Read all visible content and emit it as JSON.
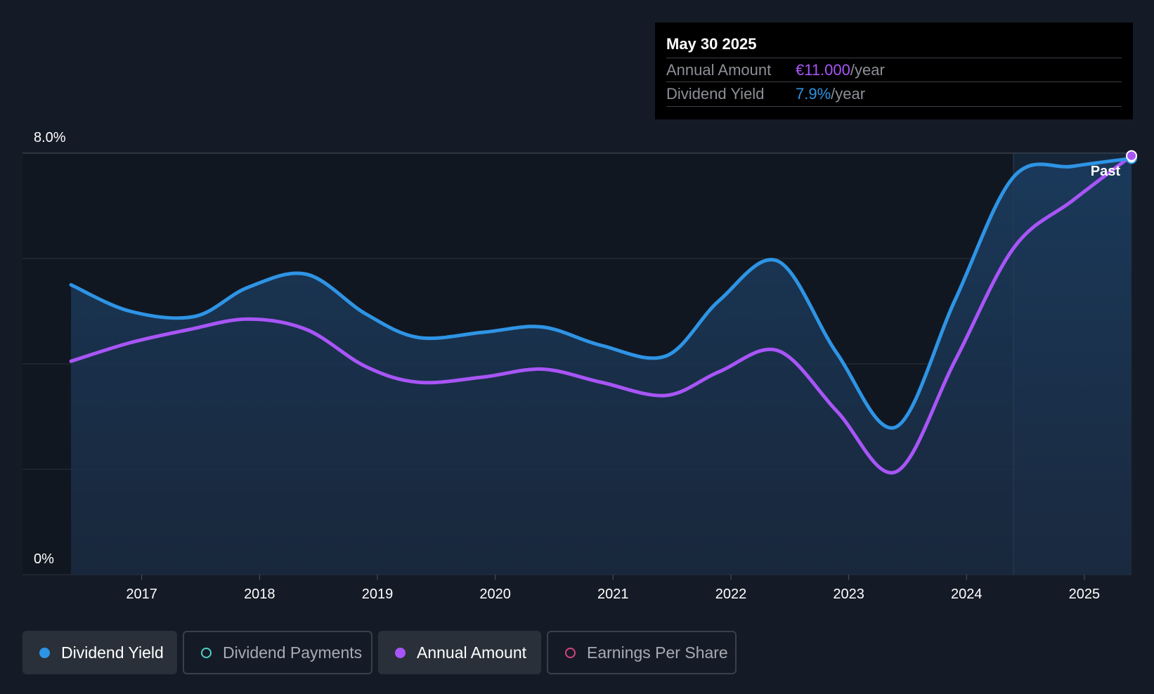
{
  "tooltip": {
    "date": "May 30 2025",
    "rows": [
      {
        "label": "Annual Amount",
        "value": "€11.000",
        "unit": "/year",
        "color": "#a855f7"
      },
      {
        "label": "Dividend Yield",
        "value": "7.9%",
        "unit": "/year",
        "color": "#2e94e5"
      }
    ]
  },
  "chart_data": {
    "type": "area",
    "x_tick_labels": [
      "2017",
      "2018",
      "2019",
      "2020",
      "2021",
      "2022",
      "2023",
      "2024",
      "2025"
    ],
    "y_tick_labels": [
      "8.0%",
      "0%"
    ],
    "ylim": [
      0,
      8
    ],
    "region_label": "Past",
    "grid": true,
    "series": [
      {
        "name": "Dividend Yield",
        "color": "#2e94e5",
        "filled": true,
        "points": [
          [
            2016.4,
            5.5
          ],
          [
            2016.9,
            5.0
          ],
          [
            2017.45,
            4.9
          ],
          [
            2017.9,
            5.45
          ],
          [
            2018.4,
            5.7
          ],
          [
            2018.9,
            4.95
          ],
          [
            2019.35,
            4.5
          ],
          [
            2019.9,
            4.6
          ],
          [
            2020.4,
            4.7
          ],
          [
            2020.9,
            4.35
          ],
          [
            2021.45,
            4.15
          ],
          [
            2021.9,
            5.2
          ],
          [
            2022.4,
            5.95
          ],
          [
            2022.9,
            4.2
          ],
          [
            2023.4,
            2.8
          ],
          [
            2023.9,
            5.2
          ],
          [
            2024.4,
            7.55
          ],
          [
            2024.9,
            7.75
          ],
          [
            2025.4,
            7.9
          ]
        ]
      },
      {
        "name": "Annual Amount",
        "color": "#a855f7",
        "filled": false,
        "points": [
          [
            2016.4,
            4.05
          ],
          [
            2016.9,
            4.4
          ],
          [
            2017.4,
            4.65
          ],
          [
            2017.9,
            4.85
          ],
          [
            2018.4,
            4.65
          ],
          [
            2018.9,
            3.95
          ],
          [
            2019.35,
            3.65
          ],
          [
            2019.9,
            3.75
          ],
          [
            2020.4,
            3.9
          ],
          [
            2020.9,
            3.65
          ],
          [
            2021.45,
            3.4
          ],
          [
            2021.9,
            3.85
          ],
          [
            2022.4,
            4.25
          ],
          [
            2022.9,
            3.1
          ],
          [
            2023.4,
            1.95
          ],
          [
            2023.9,
            4.05
          ],
          [
            2024.4,
            6.2
          ],
          [
            2024.9,
            7.1
          ],
          [
            2025.4,
            7.95
          ]
        ]
      }
    ]
  },
  "legend": [
    {
      "label": "Dividend Yield",
      "color": "#2e94e5",
      "active": true
    },
    {
      "label": "Dividend Payments",
      "color": "#4fd1c5",
      "active": false
    },
    {
      "label": "Annual Amount",
      "color": "#a855f7",
      "active": true
    },
    {
      "label": "Earnings Per Share",
      "color": "#d6427a",
      "active": false
    }
  ]
}
